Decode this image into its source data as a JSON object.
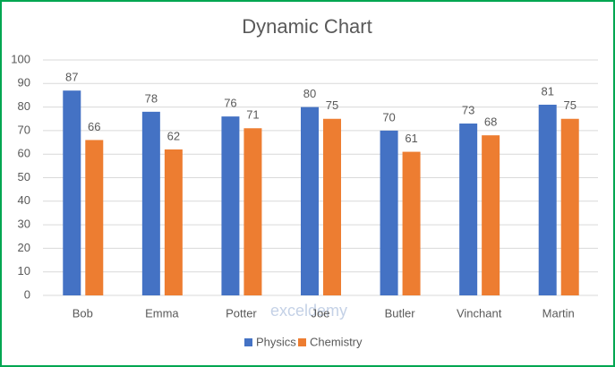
{
  "chart_data": {
    "type": "bar",
    "title": "Dynamic Chart",
    "categories": [
      "Bob",
      "Emma",
      "Potter",
      "Joe",
      "Butler",
      "Vinchant",
      "Martin"
    ],
    "series": [
      {
        "name": "Physics",
        "color": "#4472c4",
        "values": [
          87,
          78,
          76,
          80,
          70,
          73,
          81
        ]
      },
      {
        "name": "Chemistry",
        "color": "#ed7d31",
        "values": [
          66,
          62,
          71,
          75,
          61,
          68,
          75
        ]
      }
    ],
    "ylim": [
      0,
      100
    ],
    "yticks": [
      0,
      10,
      20,
      30,
      40,
      50,
      60,
      70,
      80,
      90,
      100
    ],
    "grid": true,
    "legend": "bottom",
    "watermark": "exceldemy"
  }
}
